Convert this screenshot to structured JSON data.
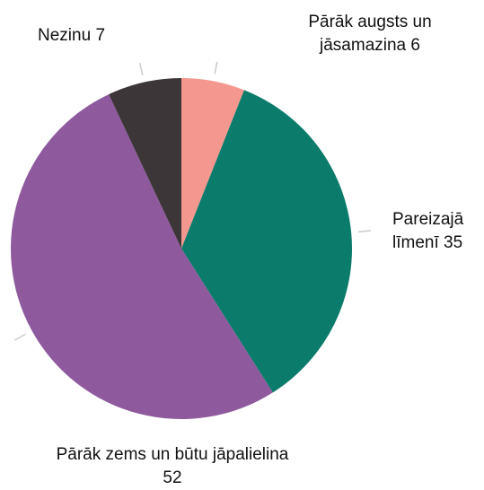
{
  "chart_data": {
    "type": "pie",
    "categories": [
      "Pārāk augsts un jāsamazina",
      "Pareizajā līmenī",
      "Pārāk zems un būtu jāpalielina",
      "Nezinu"
    ],
    "values": [
      6,
      35,
      52,
      7
    ],
    "colors": [
      "#f4978e",
      "#0b7b6b",
      "#8e5a9d",
      "#3d3639"
    ]
  }
}
